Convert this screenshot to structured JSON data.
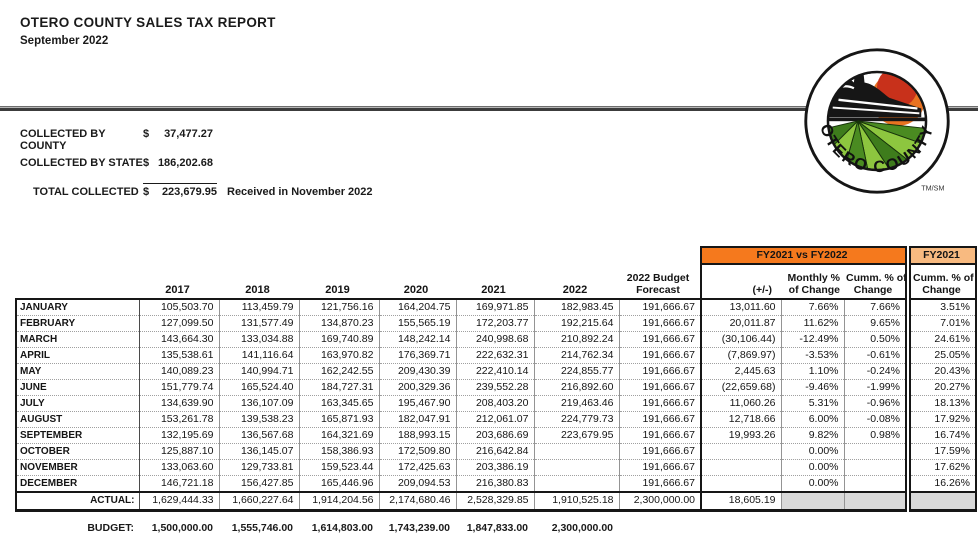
{
  "header": {
    "title": "OTERO COUNTY SALES TAX REPORT",
    "subtitle": "September 2022"
  },
  "summary": {
    "county": {
      "label": "COLLECTED BY COUNTY",
      "currency": "$",
      "value": "37,477.27"
    },
    "state": {
      "label": "COLLECTED BY STATE",
      "currency": "$",
      "value": "186,202.68"
    },
    "total": {
      "label": "TOTAL COLLECTED",
      "currency": "$",
      "value": "223,679.95",
      "note": "Received in November  2022"
    }
  },
  "logo": {
    "ring_text": "OTERO COUNTY",
    "trademark": "TM/SM",
    "colors": {
      "sun_red": "#C8311B",
      "glow_orange": "#E87322",
      "field_light": "#8DC63F",
      "field_dark": "#4A8B21",
      "train_black": "#161616"
    }
  },
  "table": {
    "band": {
      "compare_label": "FY2021 vs FY2022",
      "prior_label": "FY2021",
      "compare_color": "#F5791D",
      "prior_color": "#F8BA80",
      "shaded_color": "#D9D9D9"
    },
    "col_headers": {
      "years": [
        "2017",
        "2018",
        "2019",
        "2020",
        "2021"
      ],
      "year_current": "2022",
      "forecast_line1": "2022 Budget",
      "forecast_line2": "Forecast",
      "diff": "(+/-)",
      "monthly_line1": "Monthly %",
      "monthly_line2": "of Change",
      "cumm_line1": "Cumm. % of",
      "cumm_line2": "Change",
      "prior_line1": "Cumm. % of",
      "prior_line2": "Change"
    },
    "rows": [
      {
        "month": "JANUARY",
        "values": [
          "105,503.70",
          "113,459.79",
          "121,756.16",
          "164,204.75",
          "169,971.85",
          "182,983.45",
          "191,666.67",
          "13,011.60",
          "7.66%",
          "7.66%",
          "3.51%"
        ]
      },
      {
        "month": "FEBRUARY",
        "values": [
          "127,099.50",
          "131,577.49",
          "134,870.23",
          "155,565.19",
          "172,203.77",
          "192,215.64",
          "191,666.67",
          "20,011.87",
          "11.62%",
          "9.65%",
          "7.01%"
        ]
      },
      {
        "month": "MARCH",
        "values": [
          "143,664.30",
          "133,034.88",
          "169,740.89",
          "148,242.14",
          "240,998.68",
          "210,892.24",
          "191,666.67",
          "(30,106.44)",
          "-12.49%",
          "0.50%",
          "24.61%"
        ]
      },
      {
        "month": "APRIL",
        "values": [
          "135,538.61",
          "141,116.64",
          "163,970.82",
          "176,369.71",
          "222,632.31",
          "214,762.34",
          "191,666.67",
          "(7,869.97)",
          "-3.53%",
          "-0.61%",
          "25.05%"
        ]
      },
      {
        "month": "MAY",
        "values": [
          "140,089.23",
          "140,994.71",
          "162,242.55",
          "209,430.39",
          "222,410.14",
          "224,855.77",
          "191,666.67",
          "2,445.63",
          "1.10%",
          "-0.24%",
          "20.43%"
        ]
      },
      {
        "month": "JUNE",
        "values": [
          "151,779.74",
          "165,524.40",
          "184,727.31",
          "200,329.36",
          "239,552.28",
          "216,892.60",
          "191,666.67",
          "(22,659.68)",
          "-9.46%",
          "-1.99%",
          "20.27%"
        ]
      },
      {
        "month": "JULY",
        "values": [
          "134,639.90",
          "136,107.09",
          "163,345.65",
          "195,467.90",
          "208,403.20",
          "219,463.46",
          "191,666.67",
          "11,060.26",
          "5.31%",
          "-0.96%",
          "18.13%"
        ]
      },
      {
        "month": "AUGUST",
        "values": [
          "153,261.78",
          "139,538.23",
          "165,871.93",
          "182,047.91",
          "212,061.07",
          "224,779.73",
          "191,666.67",
          "12,718.66",
          "6.00%",
          "-0.08%",
          "17.92%"
        ]
      },
      {
        "month": "SEPTEMBER",
        "values": [
          "132,195.69",
          "136,567.68",
          "164,321.69",
          "188,993.15",
          "203,686.69",
          "223,679.95",
          "191,666.67",
          "19,993.26",
          "9.82%",
          "0.98%",
          "16.74%"
        ]
      },
      {
        "month": "OCTOBER",
        "values": [
          "125,887.10",
          "136,145.07",
          "158,386.93",
          "172,509.80",
          "216,642.84",
          "",
          "191,666.67",
          "",
          "0.00%",
          "",
          "17.59%"
        ]
      },
      {
        "month": "NOVEMBER",
        "values": [
          "133,063.60",
          "129,733.81",
          "159,523.44",
          "172,425.63",
          "203,386.19",
          "",
          "191,666.67",
          "",
          "0.00%",
          "",
          "17.62%"
        ]
      },
      {
        "month": "DECEMBER",
        "values": [
          "146,721.18",
          "156,427.85",
          "165,446.96",
          "209,094.53",
          "216,380.83",
          "",
          "191,666.67",
          "",
          "0.00%",
          "",
          "16.26%"
        ]
      }
    ],
    "actual": {
      "label": "ACTUAL:",
      "values": [
        "1,629,444.33",
        "1,660,227.64",
        "1,914,204.56",
        "2,174,680.46",
        "2,528,329.85",
        "1,910,525.18",
        "2,300,000.00",
        "18,605.19"
      ]
    }
  },
  "budget": {
    "label": "BUDGET:",
    "values": [
      "1,500,000.00",
      "1,555,746.00",
      "1,614,803.00",
      "1,743,239.00",
      "1,847,833.00",
      "2,300,000.00"
    ]
  }
}
